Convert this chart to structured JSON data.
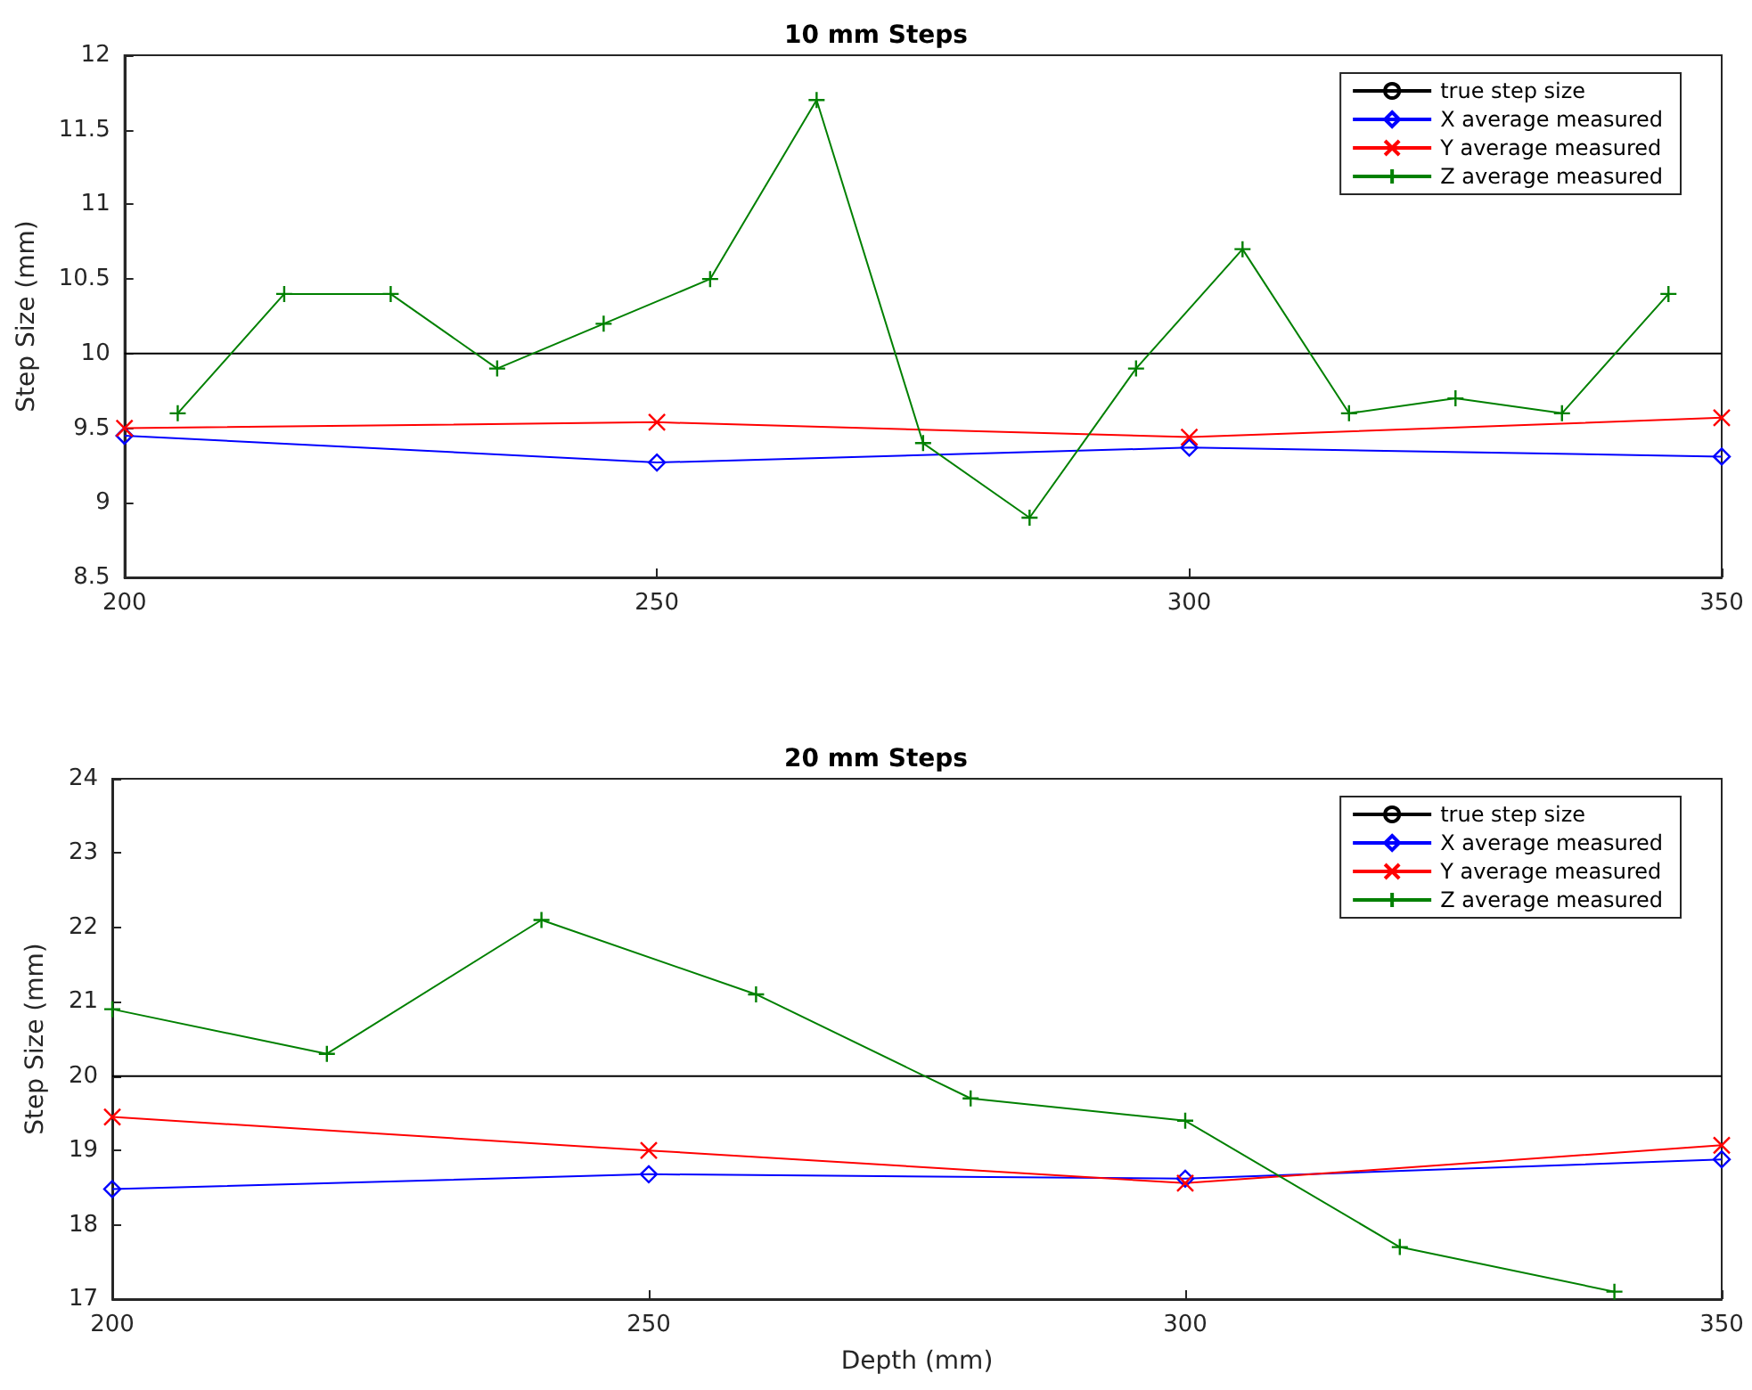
{
  "chart_data": [
    {
      "type": "line",
      "title": "10 mm Steps",
      "ylabel": "Step Size (mm)",
      "xlim": [
        200,
        350
      ],
      "xticks": [
        200,
        250,
        300,
        350
      ],
      "ylim": [
        8.5,
        12
      ],
      "yticks": [
        8.5,
        9,
        9.5,
        10,
        10.5,
        11,
        11.5,
        12
      ],
      "grid": false,
      "legend": "top right",
      "series": [
        {
          "name": "true step size",
          "color": "#000000",
          "marker": "none",
          "x": [
            200,
            350
          ],
          "values": [
            10,
            10
          ]
        },
        {
          "name": "X average measured",
          "color": "#0000ff",
          "marker": "diamond",
          "x": [
            200,
            250,
            300,
            350
          ],
          "values": [
            9.45,
            9.27,
            9.37,
            9.31
          ]
        },
        {
          "name": "Y average measured",
          "color": "#ff0000",
          "marker": "cross",
          "x": [
            200,
            250,
            300,
            350
          ],
          "values": [
            9.5,
            9.54,
            9.44,
            9.57
          ]
        },
        {
          "name": "Z average measured",
          "color": "#008000",
          "marker": "plus",
          "x": [
            205,
            215,
            225,
            235,
            245,
            255,
            265,
            275,
            285,
            295,
            305,
            315,
            325,
            335,
            345
          ],
          "values": [
            9.6,
            10.4,
            10.4,
            9.9,
            10.2,
            10.5,
            11.7,
            9.4,
            8.9,
            9.9,
            10.7,
            9.6,
            9.7,
            9.6,
            10.4
          ]
        }
      ]
    },
    {
      "type": "line",
      "title": "20 mm Steps",
      "xlabel": "Depth (mm)",
      "ylabel": "Step Size (mm)",
      "xlim": [
        200,
        350
      ],
      "xticks": [
        200,
        250,
        300,
        350
      ],
      "ylim": [
        17,
        24
      ],
      "yticks": [
        17,
        18,
        19,
        20,
        21,
        22,
        23,
        24
      ],
      "grid": false,
      "legend": "top right",
      "series": [
        {
          "name": "true step size",
          "color": "#000000",
          "marker": "none",
          "x": [
            200,
            350
          ],
          "values": [
            20,
            20
          ]
        },
        {
          "name": "X average measured",
          "color": "#0000ff",
          "marker": "diamond",
          "x": [
            200,
            250,
            300,
            350
          ],
          "values": [
            18.48,
            18.68,
            18.62,
            18.88
          ]
        },
        {
          "name": "Y average measured",
          "color": "#ff0000",
          "marker": "cross",
          "x": [
            200,
            250,
            300,
            350
          ],
          "values": [
            19.45,
            19.0,
            18.56,
            19.07
          ]
        },
        {
          "name": "Z average measured",
          "color": "#008000",
          "marker": "plus",
          "x": [
            200,
            220,
            240,
            260,
            280,
            300,
            320,
            340
          ],
          "values": [
            20.9,
            20.3,
            22.1,
            21.1,
            19.7,
            19.4,
            17.7,
            17.1
          ]
        }
      ]
    }
  ]
}
